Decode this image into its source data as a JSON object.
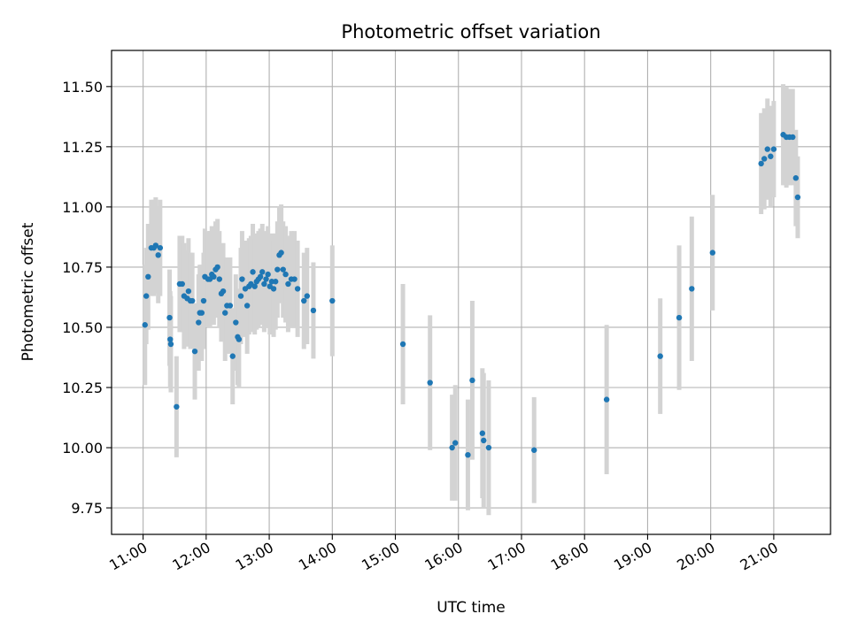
{
  "chart_data": {
    "type": "scatter",
    "title": "Photometric offset variation",
    "xlabel": "UTC time",
    "ylabel": "Photometric offset",
    "x_unit": "hours UTC",
    "xlim": [
      10.5,
      21.9
    ],
    "ylim": [
      9.64,
      11.65
    ],
    "grid": true,
    "legend": "none",
    "x_ticks": [
      {
        "value": 11,
        "label": "11:00"
      },
      {
        "value": 12,
        "label": "12:00"
      },
      {
        "value": 13,
        "label": "13:00"
      },
      {
        "value": 14,
        "label": "14:00"
      },
      {
        "value": 15,
        "label": "15:00"
      },
      {
        "value": 16,
        "label": "16:00"
      },
      {
        "value": 17,
        "label": "17:00"
      },
      {
        "value": 18,
        "label": "18:00"
      },
      {
        "value": 19,
        "label": "19:00"
      },
      {
        "value": 20,
        "label": "20:00"
      },
      {
        "value": 21,
        "label": "21:00"
      }
    ],
    "y_ticks": [
      {
        "value": 9.75,
        "label": "9.75"
      },
      {
        "value": 10.0,
        "label": "10.00"
      },
      {
        "value": 10.25,
        "label": "10.25"
      },
      {
        "value": 10.5,
        "label": "10.50"
      },
      {
        "value": 10.75,
        "label": "10.75"
      },
      {
        "value": 11.0,
        "label": "11.00"
      },
      {
        "value": 11.25,
        "label": "11.25"
      },
      {
        "value": 11.5,
        "label": "11.50"
      }
    ],
    "colors": {
      "point": "#1f77b4",
      "errorbar": "#d3d3d3",
      "grid": "#b0b0b0"
    },
    "series": [
      {
        "points": [
          [
            11.03,
            10.51,
            0.25
          ],
          [
            11.05,
            10.63,
            0.2
          ],
          [
            11.08,
            10.71,
            0.22
          ],
          [
            11.13,
            10.83,
            0.2
          ],
          [
            11.17,
            10.83,
            0.2
          ],
          [
            11.2,
            10.84,
            0.2
          ],
          [
            11.24,
            10.8,
            0.2
          ],
          [
            11.27,
            10.83,
            0.2
          ],
          [
            11.42,
            10.54,
            0.2
          ],
          [
            11.43,
            10.45,
            0.2
          ],
          [
            11.44,
            10.43,
            0.2
          ],
          [
            11.53,
            10.17,
            0.21
          ],
          [
            11.58,
            10.68,
            0.2
          ],
          [
            11.62,
            10.68,
            0.2
          ],
          [
            11.65,
            10.63,
            0.22
          ],
          [
            11.7,
            10.62,
            0.2
          ],
          [
            11.72,
            10.65,
            0.22
          ],
          [
            11.75,
            10.61,
            0.2
          ],
          [
            11.78,
            10.61,
            0.2
          ],
          [
            11.82,
            10.4,
            0.2
          ],
          [
            11.88,
            10.52,
            0.2
          ],
          [
            11.9,
            10.56,
            0.2
          ],
          [
            11.93,
            10.56,
            0.2
          ],
          [
            11.96,
            10.61,
            0.2
          ],
          [
            11.98,
            10.71,
            0.2
          ],
          [
            12.03,
            10.7,
            0.2
          ],
          [
            12.06,
            10.7,
            0.2
          ],
          [
            12.09,
            10.72,
            0.2
          ],
          [
            12.12,
            10.71,
            0.2
          ],
          [
            12.15,
            10.74,
            0.2
          ],
          [
            12.18,
            10.75,
            0.2
          ],
          [
            12.21,
            10.7,
            0.2
          ],
          [
            12.24,
            10.64,
            0.2
          ],
          [
            12.27,
            10.65,
            0.2
          ],
          [
            12.3,
            10.56,
            0.2
          ],
          [
            12.33,
            10.59,
            0.2
          ],
          [
            12.38,
            10.59,
            0.2
          ],
          [
            12.42,
            10.38,
            0.2
          ],
          [
            12.47,
            10.52,
            0.2
          ],
          [
            12.5,
            10.46,
            0.2
          ],
          [
            12.52,
            10.45,
            0.2
          ],
          [
            12.55,
            10.63,
            0.2
          ],
          [
            12.57,
            10.7,
            0.2
          ],
          [
            12.62,
            10.66,
            0.2
          ],
          [
            12.65,
            10.59,
            0.2
          ],
          [
            12.68,
            10.67,
            0.2
          ],
          [
            12.71,
            10.68,
            0.2
          ],
          [
            12.74,
            10.73,
            0.2
          ],
          [
            12.77,
            10.67,
            0.2
          ],
          [
            12.8,
            10.69,
            0.2
          ],
          [
            12.83,
            10.7,
            0.2
          ],
          [
            12.86,
            10.71,
            0.2
          ],
          [
            12.89,
            10.73,
            0.2
          ],
          [
            12.92,
            10.68,
            0.2
          ],
          [
            12.95,
            10.7,
            0.2
          ],
          [
            12.98,
            10.72,
            0.2
          ],
          [
            13.01,
            10.67,
            0.2
          ],
          [
            13.04,
            10.69,
            0.2
          ],
          [
            13.07,
            10.66,
            0.2
          ],
          [
            13.1,
            10.69,
            0.2
          ],
          [
            13.13,
            10.74,
            0.2
          ],
          [
            13.16,
            10.8,
            0.2
          ],
          [
            13.19,
            10.81,
            0.2
          ],
          [
            13.22,
            10.74,
            0.2
          ],
          [
            13.26,
            10.72,
            0.2
          ],
          [
            13.3,
            10.68,
            0.2
          ],
          [
            13.35,
            10.7,
            0.2
          ],
          [
            13.4,
            10.7,
            0.2
          ],
          [
            13.45,
            10.66,
            0.2
          ],
          [
            13.55,
            10.61,
            0.2
          ],
          [
            13.6,
            10.63,
            0.2
          ],
          [
            13.7,
            10.57,
            0.2
          ],
          [
            14.0,
            10.61,
            0.23
          ],
          [
            15.12,
            10.43,
            0.25
          ],
          [
            15.55,
            10.27,
            0.28
          ],
          [
            15.9,
            10.0,
            0.22
          ],
          [
            15.95,
            10.02,
            0.24
          ],
          [
            16.15,
            9.97,
            0.23
          ],
          [
            16.22,
            10.28,
            0.33
          ],
          [
            16.38,
            10.06,
            0.27
          ],
          [
            16.4,
            10.03,
            0.28
          ],
          [
            16.48,
            10.0,
            0.28
          ],
          [
            17.2,
            9.99,
            0.22
          ],
          [
            18.35,
            10.2,
            0.31
          ],
          [
            19.2,
            10.38,
            0.24
          ],
          [
            19.5,
            10.54,
            0.3
          ],
          [
            19.7,
            10.66,
            0.3
          ],
          [
            20.03,
            10.81,
            0.24
          ],
          [
            20.8,
            11.18,
            0.21
          ],
          [
            20.85,
            11.2,
            0.21
          ],
          [
            20.9,
            11.24,
            0.21
          ],
          [
            20.95,
            11.21,
            0.21
          ],
          [
            21.0,
            11.24,
            0.2
          ],
          [
            21.15,
            11.3,
            0.21
          ],
          [
            21.2,
            11.29,
            0.21
          ],
          [
            21.25,
            11.29,
            0.2
          ],
          [
            21.3,
            11.29,
            0.2
          ],
          [
            21.35,
            11.12,
            0.2
          ],
          [
            21.38,
            11.04,
            0.17
          ]
        ]
      }
    ]
  }
}
